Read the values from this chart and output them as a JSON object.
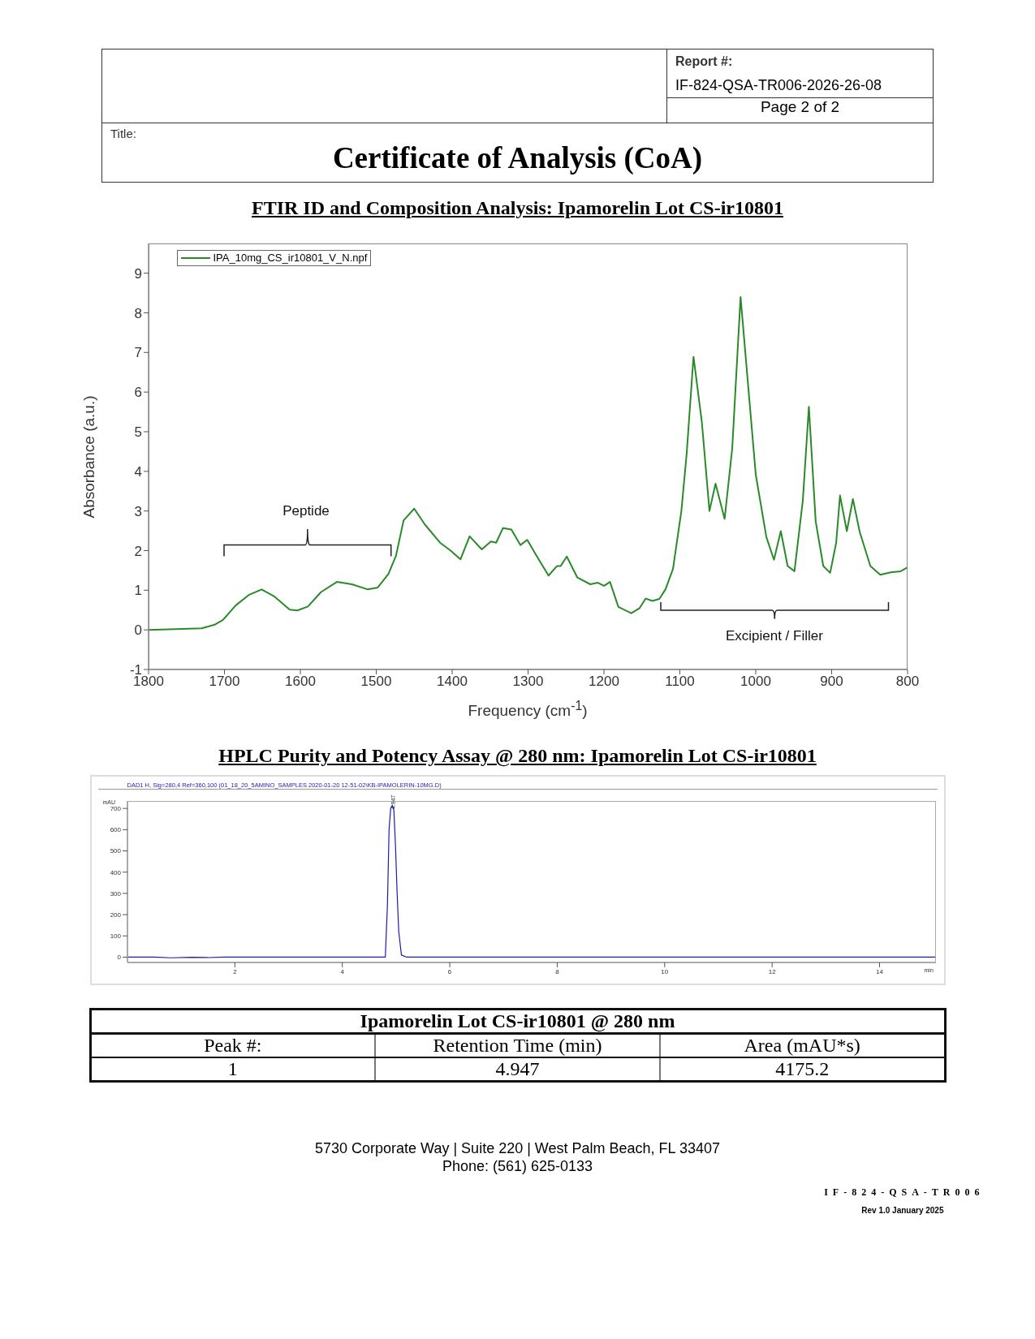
{
  "chart_data": [
    {
      "type": "other",
      "title": "Certificate of Analysis (CoA)",
      "annotations": [
        "Report #:",
        "IF-824-QSA-TR006-2026-26-08",
        "Page 2 of 2",
        "Title:"
      ]
    },
    {
      "type": "line",
      "title": "FTIR ID and Composition Analysis: Ipamorelin Lot CS-ir10801",
      "xlabel": "Frequency (cm$^{-1}$)",
      "ylabel": "Absorbance (a.u.)",
      "xlim": [
        1800,
        800
      ],
      "xticks": [
        1800,
        1700,
        1600,
        1500,
        1400,
        1300,
        1200,
        1100,
        1000,
        900,
        800
      ],
      "ylim": [
        -1,
        9.75
      ],
      "yticks": [
        -1,
        0,
        1,
        2,
        3,
        4,
        5,
        6,
        7,
        8,
        9
      ],
      "legend": "top left",
      "marker": "none",
      "line_style": "solid",
      "series": [
        {
          "name": "IPA_10mg_CS_ir10801_V_N.npf",
          "color": "#2a8a2a",
          "x": [
            1800,
            1730,
            1713,
            1702,
            1685,
            1668,
            1651,
            1634,
            1614,
            1604,
            1590,
            1573,
            1552,
            1532,
            1511,
            1498,
            1484,
            1474,
            1464,
            1450,
            1436,
            1416,
            1402,
            1389,
            1377,
            1361,
            1349,
            1342,
            1333,
            1322,
            1310,
            1301,
            1290,
            1273,
            1262,
            1257,
            1249,
            1235,
            1218,
            1208,
            1200,
            1192,
            1181,
            1164,
            1153,
            1145,
            1136,
            1127,
            1119,
            1109,
            1098,
            1091,
            1082,
            1071,
            1061,
            1053,
            1041,
            1031,
            1020,
            1010,
            1000,
            986,
            976,
            967,
            958,
            949,
            938,
            930,
            921,
            911,
            902,
            894,
            889,
            880,
            872,
            863,
            849,
            836,
            822,
            809,
            800
          ],
          "values": [
            0,
            0.04,
            0.13,
            0.25,
            0.62,
            0.88,
            1.02,
            0.84,
            0.51,
            0.49,
            0.59,
            0.95,
            1.21,
            1.15,
            1.02,
            1.07,
            1.41,
            1.87,
            2.76,
            3.06,
            2.66,
            2.2,
            2.0,
            1.78,
            2.36,
            2.03,
            2.23,
            2.2,
            2.57,
            2.53,
            2.14,
            2.27,
            1.91,
            1.37,
            1.61,
            1.61,
            1.85,
            1.32,
            1.15,
            1.19,
            1.11,
            1.21,
            0.58,
            0.42,
            0.55,
            0.79,
            0.73,
            0.78,
            1.02,
            1.54,
            3.0,
            4.45,
            6.89,
            5.24,
            3.0,
            3.69,
            2.8,
            4.58,
            8.4,
            6.16,
            3.92,
            2.34,
            1.77,
            2.49,
            1.61,
            1.48,
            3.26,
            5.63,
            2.73,
            1.61,
            1.44,
            2.2,
            3.39,
            2.49,
            3.3,
            2.47,
            1.61,
            1.39,
            1.45,
            1.48,
            1.58
          ]
        }
      ],
      "annotations": [
        "Peptide",
        "Excipient / Filler"
      ]
    },
    {
      "type": "line",
      "title": "HPLC Purity and Potency Assay @ 280 nm: Ipamorelin Lot CS-ir10801",
      "subtitle": "DAD1 H, Sig=280,4 Ref=360,100 (01_18_20_5AMINO_SAMPLES 2020-01-20 12-51-02\\KB-IPAMOLERIN-10MG.D)",
      "xlabel": "min",
      "ylabel": "mAU",
      "xlim": [
        0,
        15.05
      ],
      "xticks": [
        2,
        4,
        6,
        8,
        10,
        12,
        14
      ],
      "ylim": [
        -25,
        735
      ],
      "yticks": [
        0,
        100,
        200,
        300,
        400,
        500,
        600,
        700
      ],
      "marker": "none",
      "line_style": "solid",
      "series": [
        {
          "color": "#1c1cb0",
          "x": [
            0,
            0.5,
            0.8,
            1.2,
            1.5,
            1.8,
            4.8,
            4.84,
            4.87,
            4.9,
            4.93,
            4.96,
            4.99,
            5.02,
            5.05,
            5.1,
            5.2,
            15.05
          ],
          "values": [
            0,
            0,
            -3,
            -1,
            -2,
            0,
            0,
            250,
            600,
            700,
            715,
            690,
            520,
            300,
            120,
            10,
            0,
            0
          ]
        }
      ],
      "annotations": [
        {
          "text": "4.947",
          "x": 4.947,
          "y": 715
        }
      ]
    },
    {
      "type": "other",
      "title": "Ipamorelin Lot CS-ir10801 @ 280 nm",
      "annotations": [
        "Peak #:",
        "Retention Time (min)",
        "Area (mAU*s)",
        "1",
        "4.947",
        "4175.2"
      ]
    },
    {
      "type": "other",
      "annotations": [
        "5730 Corporate Way | Suite 220 | West Palm Beach, FL 33407",
        "Phone: (561) 625-0133",
        "IF-824-QSA-TR006",
        "Rev 1.0 January 2025"
      ]
    }
  ]
}
